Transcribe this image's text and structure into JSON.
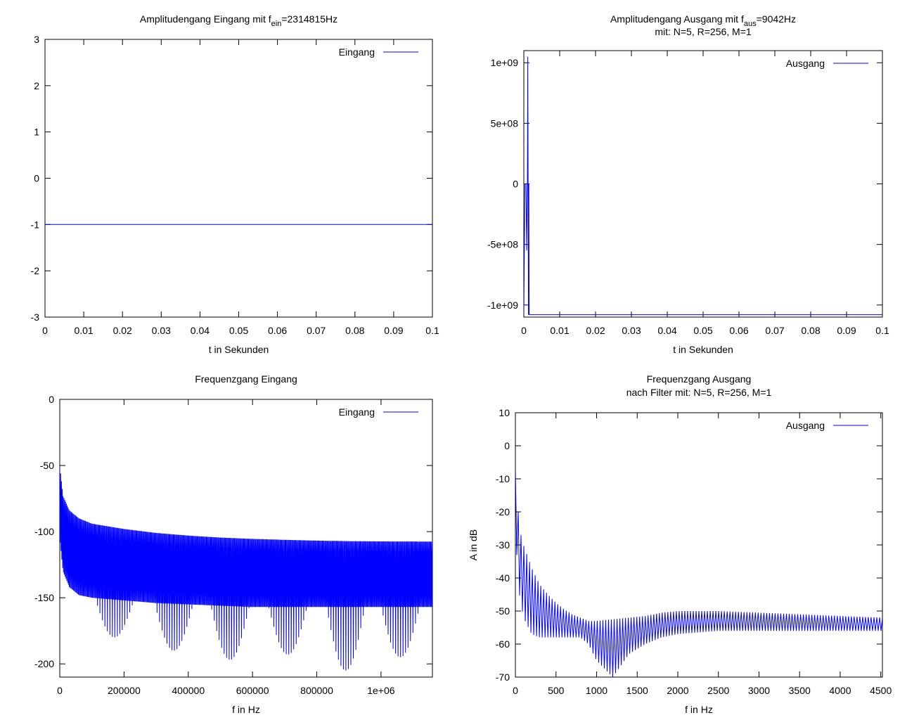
{
  "colors": {
    "series": "#0000ff",
    "axis": "#000000",
    "background": "#ffffff"
  },
  "chart_data": [
    {
      "type": "line",
      "title": "Amplitudengang Eingang mit f",
      "title_sub": "ein",
      "title_tail": "=2314815Hz",
      "xlabel": "t in Sekunden",
      "ylabel": "",
      "xlim": [
        0,
        0.1
      ],
      "ylim": [
        -3,
        3
      ],
      "xticks": [
        0,
        0.01,
        0.02,
        0.03,
        0.04,
        0.05,
        0.06,
        0.07,
        0.08,
        0.09,
        0.1
      ],
      "yticks": [
        -3,
        -2,
        -1,
        0,
        1,
        2,
        3
      ],
      "legend": "top-right",
      "series": [
        {
          "name": "Eingang",
          "x": [
            0,
            0.1
          ],
          "y": [
            -1,
            -1
          ]
        }
      ]
    },
    {
      "type": "line",
      "title": "Amplitudengang Ausgang mit f",
      "title_sub": "aus",
      "title_tail": "=9042Hz",
      "subtitle": "mit: N=5, R=256, M=1",
      "xlabel": "t in Sekunden",
      "ylabel": "",
      "xlim": [
        0,
        0.1
      ],
      "ylim": [
        -1100000000.0,
        1100000000.0
      ],
      "xticks": [
        0,
        0.01,
        0.02,
        0.03,
        0.04,
        0.05,
        0.06,
        0.07,
        0.08,
        0.09,
        0.1
      ],
      "yticks": [
        -1000000000.0,
        -500000000.0,
        0,
        500000000.0,
        1000000000.0
      ],
      "legend": "top-right",
      "series": [
        {
          "name": "Ausgang",
          "x": [
            0,
            0.0003,
            0.0006,
            0.0008,
            0.001,
            0.0011,
            0.0012,
            0.0013,
            0.0014,
            0.0015,
            0.0016,
            0.1
          ],
          "y": [
            -1080000000.0,
            0,
            0,
            -550000000.0,
            0,
            1050000000.0,
            0,
            -1080000000.0,
            0,
            -1080000000.0,
            -1080000000.0,
            -1080000000.0
          ]
        }
      ]
    },
    {
      "type": "line",
      "title": "Frequenzgang Eingang",
      "xlabel": "f in Hz",
      "ylabel": "",
      "xlim": [
        0,
        1160000
      ],
      "ylim": [
        -210,
        0
      ],
      "xticks": [
        0,
        200000,
        400000,
        600000,
        800000,
        1000000
      ],
      "xtick_labels": [
        "0",
        "200000",
        "400000",
        "600000",
        "800000",
        "1e+06"
      ],
      "yticks": [
        -200,
        -150,
        -100,
        -50,
        0
      ],
      "legend": "top-right",
      "series": [
        {
          "name": "Eingang",
          "x": [
            0,
            10000,
            30000,
            60000,
            100000,
            200000,
            300000,
            400000,
            500000,
            600000,
            700000,
            800000,
            900000,
            1000000,
            1160000
          ],
          "y_upper": [
            -50,
            -73,
            -84,
            -90,
            -94,
            -98,
            -101,
            -103,
            -104.5,
            -105.5,
            -106.2,
            -106.8,
            -107.2,
            -107.4,
            -107.5
          ],
          "y_lower": [
            -105,
            -130,
            -142,
            -148,
            -150,
            -152,
            -154,
            -155,
            -156,
            -157,
            -157,
            -157,
            -157,
            -157,
            -157
          ],
          "notch_x": [
            170000,
            355000,
            530000,
            710000,
            890000,
            1060000
          ],
          "notch_y": [
            -180,
            -190,
            -197,
            -193,
            -205,
            -195
          ]
        }
      ]
    },
    {
      "type": "line",
      "title": "Frequenzgang Ausgang",
      "subtitle": "nach Filter mit: N=5, R=256, M=1",
      "xlabel": "f in Hz",
      "ylabel": "A in dB",
      "xlim": [
        0,
        4520
      ],
      "ylim": [
        -70,
        10
      ],
      "xticks": [
        0,
        500,
        1000,
        1500,
        2000,
        2500,
        3000,
        3500,
        4000,
        4500
      ],
      "yticks": [
        -70,
        -60,
        -50,
        -40,
        -30,
        -20,
        -10,
        0,
        10
      ],
      "legend": "top-right",
      "series": [
        {
          "name": "Ausgang",
          "x": [
            0,
            20,
            50,
            100,
            200,
            300,
            400,
            500,
            600,
            700,
            800,
            900,
            1000,
            1200,
            1400,
            1600,
            1800,
            2000,
            2500,
            3000,
            3500,
            4000,
            4520
          ],
          "y_peak": [
            -7,
            -15,
            -25,
            -30,
            -37,
            -42,
            -45,
            -47.5,
            -49.5,
            -51,
            -52,
            -53,
            -53,
            -52.5,
            -52,
            -51.5,
            -50.5,
            -50,
            -50,
            -50.5,
            -51,
            -51.5,
            -52
          ],
          "y_null": [
            -20,
            -35,
            -45,
            -52,
            -57,
            -58,
            -58,
            -58,
            -58,
            -58,
            -58,
            -60,
            -65,
            -70,
            -63,
            -60,
            -58,
            -57,
            -56,
            -56,
            -56,
            -56,
            -56
          ]
        }
      ]
    }
  ]
}
